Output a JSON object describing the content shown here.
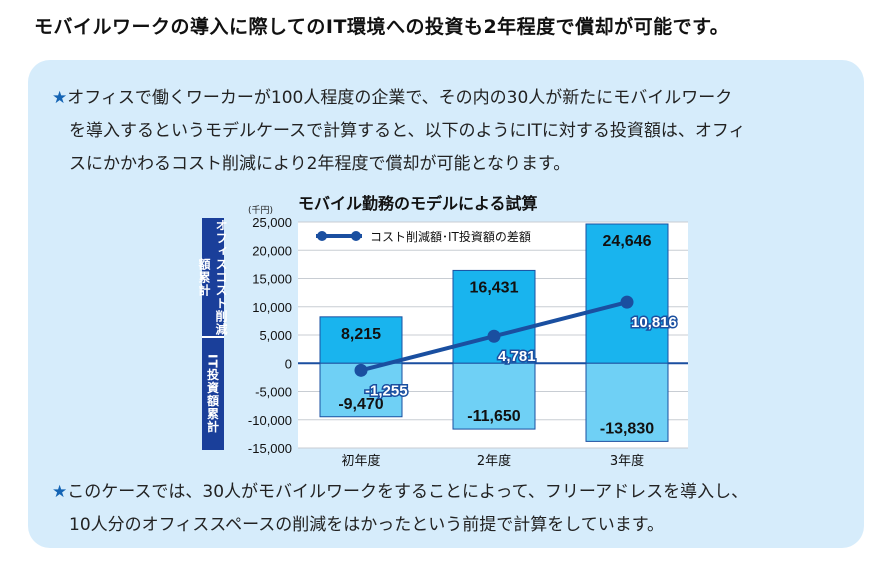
{
  "headline": "モバイルワークの導入に際してのIT環境への投資も2年程度で償却が可能です。",
  "note1": {
    "star": "★",
    "line1": "オフィスで働くワーカーが100人程度の企業で、その内の30人が新たにモバイルワーク",
    "line2": "を導入するというモデルケースで計算すると、以下のようにITに対する投資額は、オフィ",
    "line3": "スにかかわるコスト削減により2年程度で償却が可能となります。"
  },
  "note2": {
    "star": "★",
    "line1": "このケースでは、30人がモバイルワークをすることによって、フリーアドレスを導入し、",
    "line2": "10人分のオフィススペースの削減をはかったという前提で計算をしています。"
  },
  "chart_data": {
    "type": "bar",
    "title": "モバイル勤務のモデルによる試算",
    "unit": "(千円)",
    "categories": [
      "初年度",
      "2年度",
      "3年度"
    ],
    "series": [
      {
        "values": [
          8215,
          16431,
          24646
        ],
        "labels": [
          "8,215",
          "16,431",
          "24,646"
        ],
        "color": "#19b4ee"
      },
      {
        "values": [
          -9470,
          -11650,
          -13830
        ],
        "labels": [
          "-9,470",
          "-11,650",
          "-13,830"
        ],
        "color": "#6fd0f5"
      },
      {
        "name": "コスト削減額･IT投資額の差額",
        "type": "line",
        "values": [
          -1255,
          4781,
          10816
        ],
        "labels": [
          "-1,255",
          "4,781",
          "10,816"
        ],
        "color": "#1a4fa0"
      }
    ],
    "ylim": [
      -15000,
      25000
    ],
    "yticks": [
      25000,
      20000,
      15000,
      10000,
      5000,
      0,
      -5000,
      -10000,
      -15000
    ],
    "ytick_labels": [
      "25,000",
      "20,000",
      "15,000",
      "10,000",
      "5,000",
      "0",
      "-5,000",
      "-10,000",
      "-15,000"
    ],
    "side_labels": {
      "upper": "オフィスコスト削減額累計",
      "lower": "IT投資額累計"
    },
    "legend": "top-left",
    "grid": true
  }
}
